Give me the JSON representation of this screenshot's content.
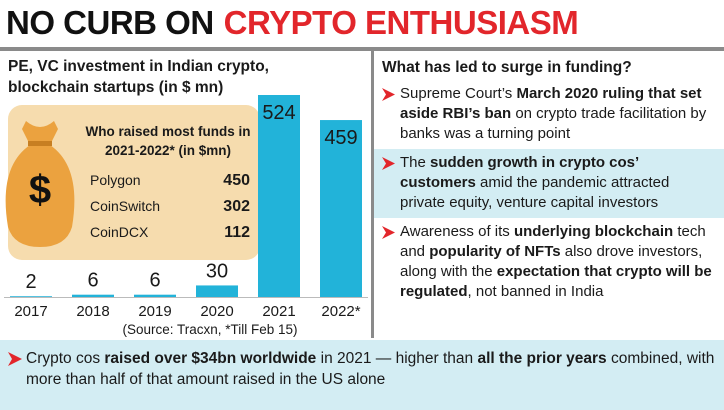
{
  "title_parts": [
    {
      "text": "NO CURB ON",
      "color": "#111111"
    },
    {
      "text": "CRYPTO ENTHUSIASM",
      "color": "#e2262b"
    }
  ],
  "chart_data": {
    "type": "bar",
    "title": "PE, VC investment in Indian crypto, blockchain startups (in $ mn)",
    "categories": [
      "2017",
      "2018",
      "2019",
      "2020",
      "2021",
      "2022*"
    ],
    "values": [
      2,
      6,
      6,
      30,
      524,
      459
    ],
    "color": "#22b3d9",
    "note": "(Source: Tracxn, *Till Feb 15)"
  },
  "inset": {
    "icon_symbol": "$",
    "title": "Who raised most funds in 2021-2022* (in $mn)",
    "rows": [
      [
        "Polygon",
        450
      ],
      [
        "CoinSwitch",
        302
      ],
      [
        "CoinDCX",
        112
      ]
    ]
  },
  "reasons": {
    "heading": "What has led to surge in funding?",
    "items": [
      {
        "shaded": false,
        "segments": [
          {
            "text": "Supreme Court’s ",
            "bold": false
          },
          {
            "text": "March 2020 ruling that set aside RBI’s ban",
            "bold": true
          },
          {
            "text": " on crypto trade facilitation by banks was a turning point",
            "bold": false
          }
        ]
      },
      {
        "shaded": true,
        "segments": [
          {
            "text": "The ",
            "bold": false
          },
          {
            "text": "sudden growth in crypto cos’ customers",
            "bold": true
          },
          {
            "text": " amid the pandemic attracted private equity, venture capital investors",
            "bold": false
          }
        ]
      },
      {
        "shaded": false,
        "segments": [
          {
            "text": "Awareness of its ",
            "bold": false
          },
          {
            "text": "underlying blockchain",
            "bold": true
          },
          {
            "text": " tech and ",
            "bold": false
          },
          {
            "text": "popularity of NFTs",
            "bold": true
          },
          {
            "text": " also drove investors, along with the ",
            "bold": false
          },
          {
            "text": "expectation that crypto will be regulated",
            "bold": true
          },
          {
            "text": ", not banned in India",
            "bold": false
          }
        ]
      }
    ]
  },
  "footer": {
    "segments": [
      {
        "text": "Crypto cos ",
        "bold": false
      },
      {
        "text": "raised over $34bn worldwide",
        "bold": true
      },
      {
        "text": " in 2021 — higher than ",
        "bold": false
      },
      {
        "text": "all the prior years",
        "bold": true
      },
      {
        "text": " combined, with more than half of that amount raised in the US alone",
        "bold": false
      }
    ]
  }
}
